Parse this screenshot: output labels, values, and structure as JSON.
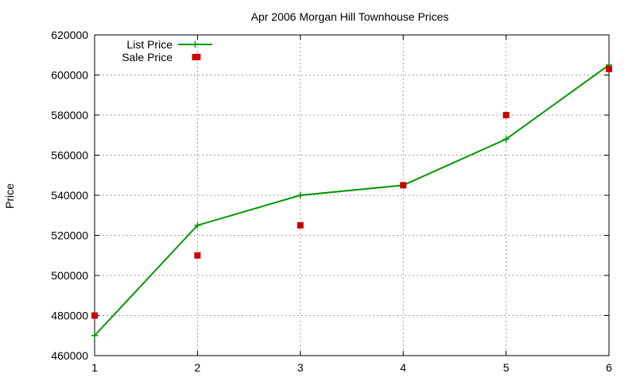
{
  "chart_data": {
    "type": "line",
    "title": "Apr 2006 Morgan Hill Townhouse Prices",
    "xlabel": "",
    "ylabel": "Price",
    "xlim": [
      1,
      6
    ],
    "ylim": [
      460000,
      620000
    ],
    "x_ticks": [
      "1",
      "2",
      "3",
      "4",
      "5",
      "6"
    ],
    "y_ticks": [
      "460000",
      "480000",
      "500000",
      "520000",
      "540000",
      "560000",
      "580000",
      "600000",
      "620000"
    ],
    "grid": true,
    "legend_position": "top-left",
    "series": [
      {
        "name": "List Price",
        "style": "line-with-plus-markers",
        "color": "#009900",
        "x": [
          1,
          2,
          3,
          4,
          5,
          6
        ],
        "y": [
          470000,
          525000,
          540000,
          545000,
          568000,
          605000
        ]
      },
      {
        "name": "Sale Price",
        "style": "square-markers",
        "color": "#cc0000",
        "x": [
          1,
          2,
          2,
          3,
          4,
          5,
          6
        ],
        "y": [
          480000,
          609000,
          510000,
          525000,
          545000,
          580000,
          603000
        ]
      }
    ]
  }
}
